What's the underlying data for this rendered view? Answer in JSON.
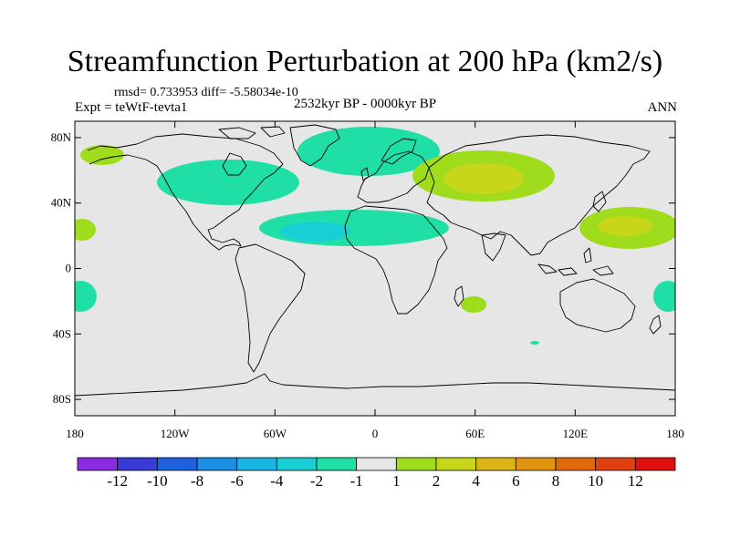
{
  "title": "Streamfunction Perturbation at 200 hPa (km2/s)",
  "stats": "rmsd= 0.733953 diff= -5.58034e-10",
  "experiment": "Expt = teWtF-tevta1",
  "period": "2532kyr BP - 0000kyr BP",
  "season": "ANN",
  "map": {
    "background_color": "#e6e6e6",
    "lat_ticks": [
      "80N",
      "40N",
      "0",
      "40S",
      "80S"
    ],
    "lon_ticks": [
      "180",
      "120W",
      "60W",
      "0",
      "60E",
      "120E",
      "180"
    ]
  },
  "colorbar": {
    "colors": [
      "#8a2be2",
      "#3a3ad8",
      "#1f62e0",
      "#1a8fe6",
      "#19b4e2",
      "#19cfd6",
      "#20dfa6",
      "#e6e6e6",
      "#9edc1c",
      "#c8d61a",
      "#dcb414",
      "#e0940f",
      "#e06a0a",
      "#e04010",
      "#e01010"
    ],
    "labels": [
      "-12",
      "-10",
      "-8",
      "-6",
      "-4",
      "-2",
      "-1",
      "1",
      "2",
      "4",
      "6",
      "8",
      "10",
      "12"
    ]
  }
}
